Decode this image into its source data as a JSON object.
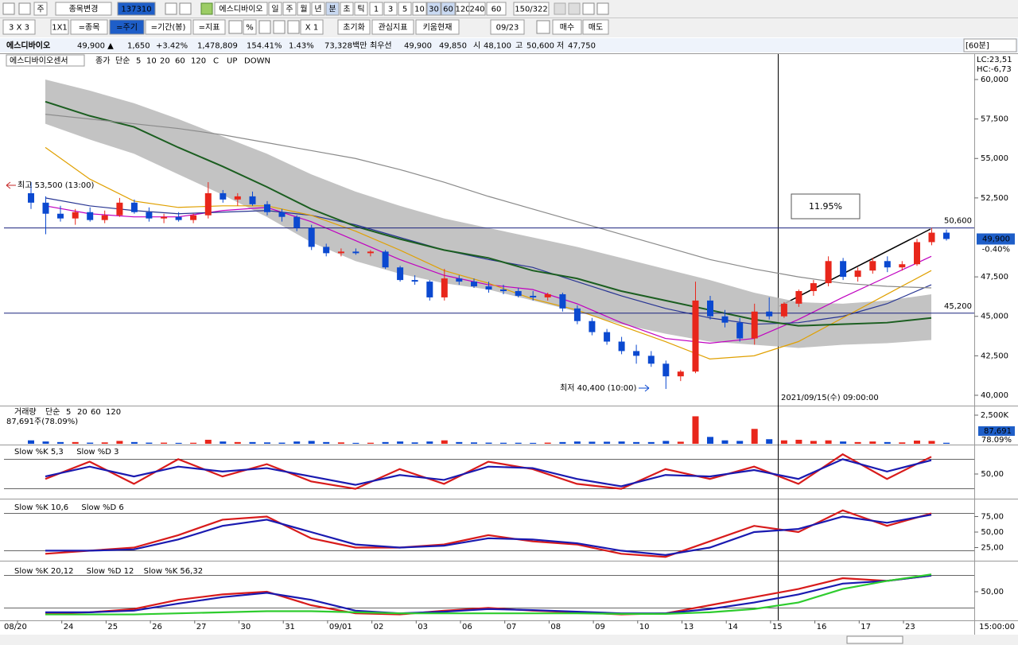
{
  "toolbar": {
    "row1": [
      "주",
      "종목변경",
      "137310",
      "에스디바이오",
      "일",
      "주",
      "월",
      "년",
      "분",
      "초",
      "틱",
      "1",
      "3",
      "5",
      "10",
      "30",
      "60",
      "120",
      "240",
      "60",
      "150/322"
    ],
    "row2": [
      "3 X 3",
      "1X1",
      "=종목",
      "=주기",
      "=기간(봉)",
      "=지표",
      "%",
      "X 1",
      "초기화",
      "관심지표",
      "키움현재",
      "09/23",
      "매수",
      "매도"
    ]
  },
  "info": [
    "에스디바이오",
    "49,900 ▲",
    "1,650",
    "+3.42%",
    "1,478,809",
    "154.41%",
    "1.43%",
    "73,328백만",
    "최우선",
    "49,900",
    "49,850",
    "시",
    "48,100",
    "고",
    "50,600",
    "저",
    "47,750",
    "[60분]"
  ],
  "chart_data": [
    {
      "type": "candlestick",
      "chart_name": "에스디바이오센서",
      "legend": [
        "종가",
        "단순"
      ],
      "extra_legend": [
        "C",
        "UP",
        "DOWN"
      ],
      "categories": [
        "08/20",
        "24",
        "25",
        "26",
        "27",
        "30",
        "31",
        "09/01",
        "02",
        "03",
        "06",
        "07",
        "08",
        "09",
        "10",
        "13",
        "14",
        "15",
        "16",
        "17",
        "23"
      ],
      "end_label": "15:00:00",
      "up_color": "#e8261b",
      "down_color": "#0b49d0",
      "candles": [
        [
          52800,
          53500,
          51800,
          52200
        ],
        [
          52200,
          52600,
          50200,
          51500
        ],
        [
          51500,
          52000,
          51000,
          51200
        ],
        [
          51200,
          51800,
          50800,
          51600
        ],
        [
          51600,
          51900,
          51000,
          51100
        ],
        [
          51100,
          51700,
          50900,
          51400
        ],
        [
          51400,
          52500,
          51300,
          52200
        ],
        [
          52200,
          52400,
          51500,
          51600
        ],
        [
          51600,
          51900,
          51000,
          51200
        ],
        [
          51200,
          51500,
          50900,
          51300
        ],
        [
          51300,
          51600,
          51000,
          51100
        ],
        [
          51100,
          51500,
          50900,
          51400
        ],
        [
          51400,
          53500,
          51200,
          52800
        ],
        [
          52800,
          53000,
          52200,
          52400
        ],
        [
          52400,
          52800,
          52000,
          52600
        ],
        [
          52600,
          52900,
          52000,
          52100
        ],
        [
          52100,
          52300,
          51400,
          51600
        ],
        [
          51600,
          51800,
          51000,
          51300
        ],
        [
          51300,
          51400,
          50400,
          50600
        ],
        [
          50600,
          50800,
          49200,
          49400
        ],
        [
          49400,
          49600,
          48800,
          49000
        ],
        [
          49000,
          49300,
          48800,
          49100
        ],
        [
          49100,
          49300,
          48900,
          49000
        ],
        [
          49000,
          49200,
          48800,
          49100
        ],
        [
          49100,
          49200,
          48000,
          48100
        ],
        [
          48100,
          48200,
          47200,
          47300
        ],
        [
          47300,
          47600,
          47000,
          47200
        ],
        [
          47200,
          47300,
          46000,
          46200
        ],
        [
          46200,
          48000,
          46000,
          47400
        ],
        [
          47400,
          47600,
          47000,
          47200
        ],
        [
          47200,
          47400,
          46800,
          46900
        ],
        [
          46900,
          47200,
          46500,
          46700
        ],
        [
          46700,
          47000,
          46400,
          46600
        ],
        [
          46600,
          46800,
          46200,
          46300
        ],
        [
          46300,
          46600,
          46000,
          46200
        ],
        [
          46200,
          46500,
          46000,
          46400
        ],
        [
          46400,
          46500,
          45300,
          45500
        ],
        [
          45500,
          45700,
          44500,
          44700
        ],
        [
          44700,
          44900,
          43800,
          44000
        ],
        [
          44000,
          44200,
          43200,
          43400
        ],
        [
          43400,
          43700,
          42600,
          42800
        ],
        [
          42800,
          43200,
          42000,
          42500
        ],
        [
          42500,
          42800,
          41800,
          42000
        ],
        [
          42000,
          42200,
          40400,
          41200
        ],
        [
          41200,
          41600,
          40900,
          41500
        ],
        [
          41500,
          47200,
          41400,
          46000
        ],
        [
          46000,
          46300,
          44800,
          45000
        ],
        [
          45000,
          45400,
          44300,
          44600
        ],
        [
          44600,
          44900,
          43400,
          43600
        ],
        [
          43600,
          45800,
          43200,
          45300
        ],
        [
          45300,
          46200,
          44800,
          45000
        ],
        [
          45000,
          45900,
          44900,
          45800
        ],
        [
          45800,
          46700,
          45600,
          46600
        ],
        [
          46600,
          47300,
          46300,
          47100
        ],
        [
          47100,
          48800,
          46900,
          48500
        ],
        [
          48500,
          48700,
          47300,
          47500
        ],
        [
          47500,
          48100,
          47200,
          47900
        ],
        [
          47900,
          48700,
          47700,
          48500
        ],
        [
          48500,
          48800,
          47800,
          48100
        ],
        [
          48100,
          48500,
          47900,
          48300
        ],
        [
          48300,
          49900,
          48200,
          49700
        ],
        [
          49700,
          50600,
          49500,
          50300
        ],
        [
          50300,
          50500,
          49800,
          49900
        ]
      ],
      "band": {
        "color": "#b9b9b9",
        "upper": [
          60000,
          59300,
          58500,
          57500,
          56400,
          55300,
          54000,
          52900,
          52000,
          51200,
          50600,
          50000,
          49400,
          48700,
          48000,
          47300,
          46500,
          45900,
          45800,
          46000,
          46400
        ],
        "lower": [
          57200,
          56200,
          55300,
          54000,
          52700,
          51300,
          49700,
          48500,
          47700,
          47100,
          46700,
          46000,
          45300,
          44500,
          43900,
          43400,
          43200,
          43000,
          43200,
          43300,
          43500
        ]
      },
      "series": [
        {
          "name": "5",
          "color": "#c000c0",
          "values": [
            52000,
            51500,
            51300,
            51300,
            51700,
            51900,
            51000,
            49800,
            48600,
            47600,
            47000,
            46700,
            45800,
            44600,
            43600,
            43300,
            43600,
            44800,
            46200,
            47500,
            48800
          ]
        },
        {
          "name": "10",
          "color": "#283593",
          "values": [
            52500,
            52000,
            51700,
            51500,
            51600,
            51700,
            51400,
            50800,
            50000,
            49200,
            48600,
            48100,
            47200,
            46300,
            45500,
            44900,
            44500,
            44600,
            45000,
            45800,
            47000
          ]
        },
        {
          "name": "20",
          "color": "#e0a000",
          "values": [
            55700,
            53700,
            52300,
            51900,
            52000,
            52000,
            51400,
            50400,
            49200,
            47900,
            47100,
            46100,
            45400,
            44400,
            43400,
            42300,
            42500,
            43400,
            44900,
            46400,
            47900
          ]
        },
        {
          "name": "60",
          "color": "#1b5e20",
          "values": [
            58600,
            57700,
            57000,
            55700,
            54500,
            53200,
            51800,
            50700,
            49900,
            49200,
            48700,
            47900,
            47400,
            46600,
            46000,
            45400,
            44800,
            44400,
            44500,
            44600,
            44900
          ]
        },
        {
          "name": "120",
          "color": "#8a8a8a",
          "values": [
            57800,
            57500,
            57200,
            56900,
            56500,
            56000,
            55500,
            55000,
            54300,
            53500,
            52600,
            51800,
            51000,
            50200,
            49400,
            48600,
            48000,
            47500,
            47100,
            46900,
            46800
          ]
        }
      ],
      "ylim": [
        39345,
        61612
      ],
      "yticks": [
        {
          "value": 60000,
          "label": "60,000"
        },
        {
          "value": 57500,
          "label": "57,500"
        },
        {
          "value": 55000,
          "label": "55,000"
        },
        {
          "value": 52500,
          "label": "52,500"
        },
        {
          "value": 47500,
          "label": "47,500"
        },
        {
          "value": 45000,
          "label": "45,000"
        },
        {
          "value": 42500,
          "label": "42,500"
        },
        {
          "value": 40000,
          "label": "40,000"
        }
      ],
      "hlines": [
        {
          "value": 50600,
          "label": "50,600"
        },
        {
          "value": 45200,
          "label": "45,200"
        }
      ],
      "last": {
        "value": 49900,
        "label": "49,900",
        "change": "-0.40%"
      },
      "corner": [
        "LC:23,51",
        "HC:-6,73"
      ],
      "annotations": [
        "최고 53,500 (13:00)",
        "최저 40,400 (10:00)",
        "11.95%",
        "2021/09/15(수) 09:00:00"
      ]
    },
    {
      "type": "bar",
      "legend": [
        "거래량",
        "단순",
        "5",
        "20",
        "60",
        "120"
      ],
      "info": "87,691주(78.09%)",
      "values": [
        300,
        200,
        150,
        150,
        100,
        120,
        250,
        150,
        100,
        100,
        80,
        90,
        350,
        200,
        150,
        150,
        120,
        100,
        200,
        250,
        150,
        120,
        80,
        90,
        150,
        200,
        120,
        200,
        300,
        150,
        120,
        100,
        90,
        90,
        80,
        100,
        150,
        200,
        180,
        180,
        200,
        150,
        150,
        250,
        180,
        2400,
        600,
        300,
        250,
        1300,
        400,
        300,
        350,
        250,
        300,
        200,
        150,
        200,
        150,
        120,
        280,
        250,
        87.691
      ],
      "ylim": [
        0,
        2900
      ],
      "yticks": [
        {
          "value": 2500,
          "label": "2,500K"
        }
      ],
      "last_labels": [
        "87,691",
        "78.09%"
      ]
    },
    {
      "type": "line",
      "levels": [
        20,
        80
      ],
      "ylim": [
        0,
        100
      ],
      "yticks": [
        {
          "value": 50,
          "label": "50,00"
        }
      ],
      "series": [
        {
          "name": "Slow %K 5,3",
          "color": "#d81b1b",
          "values": [
            40,
            75,
            30,
            80,
            45,
            70,
            35,
            20,
            60,
            30,
            75,
            60,
            30,
            20,
            60,
            40,
            65,
            30,
            90,
            40,
            85
          ]
        },
        {
          "name": "Slow %D 3",
          "color": "#1a1ab0",
          "values": [
            45,
            65,
            45,
            65,
            55,
            62,
            45,
            28,
            48,
            38,
            65,
            62,
            40,
            25,
            48,
            45,
            58,
            40,
            80,
            55,
            78
          ]
        }
      ]
    },
    {
      "type": "line",
      "levels": [
        20,
        80
      ],
      "ylim": [
        0,
        100
      ],
      "yticks": [
        {
          "value": 75,
          "label": "75,00"
        },
        {
          "value": 50,
          "label": "50,00"
        },
        {
          "value": 25,
          "label": "25,00"
        }
      ],
      "series": [
        {
          "name": "Slow %K 10,6",
          "color": "#d81b1b",
          "values": [
            15,
            20,
            25,
            45,
            70,
            75,
            40,
            25,
            25,
            30,
            45,
            35,
            30,
            15,
            10,
            35,
            60,
            50,
            85,
            60,
            80
          ]
        },
        {
          "name": "Slow %D 6",
          "color": "#1a1ab0",
          "values": [
            20,
            20,
            22,
            38,
            60,
            70,
            50,
            30,
            25,
            28,
            40,
            38,
            32,
            20,
            13,
            25,
            50,
            55,
            75,
            65,
            78
          ]
        }
      ]
    },
    {
      "type": "line",
      "levels": [
        20,
        80
      ],
      "ylim": [
        0,
        100
      ],
      "yticks": [
        {
          "value": 50,
          "label": "50,00"
        }
      ],
      "series": [
        {
          "name": "Slow %K 20,12",
          "color": "#d81b1b",
          "values": [
            10,
            12,
            18,
            35,
            45,
            50,
            25,
            10,
            8,
            15,
            20,
            15,
            12,
            8,
            10,
            25,
            40,
            55,
            75,
            70,
            80
          ]
        },
        {
          "name": "Slow %D 12",
          "color": "#1a1ab0",
          "values": [
            12,
            12,
            15,
            28,
            40,
            48,
            35,
            15,
            10,
            13,
            18,
            16,
            13,
            10,
            10,
            18,
            30,
            45,
            65,
            70,
            80
          ]
        },
        {
          "name": "Slow %K 56,32",
          "color": "#2ecc2e",
          "values": [
            8,
            8,
            8,
            10,
            12,
            14,
            14,
            12,
            10,
            10,
            10,
            10,
            10,
            9,
            9,
            12,
            18,
            30,
            55,
            70,
            82
          ]
        }
      ]
    }
  ]
}
